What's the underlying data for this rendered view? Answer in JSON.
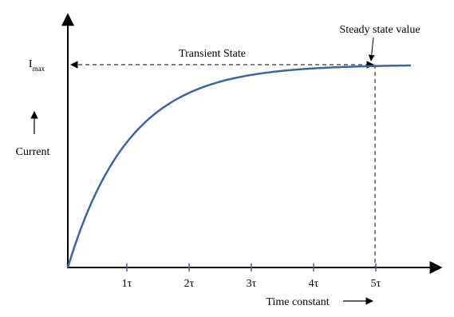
{
  "annotations": {
    "steady_state": "Steady state value",
    "transient": "Transient State"
  },
  "y_axis": {
    "label": "Current",
    "max_label": "I",
    "max_sub": "max"
  },
  "x_axis": {
    "label": "Time constant",
    "ticks": [
      "1τ",
      "2τ",
      "3τ",
      "4τ",
      "5τ"
    ]
  }
}
